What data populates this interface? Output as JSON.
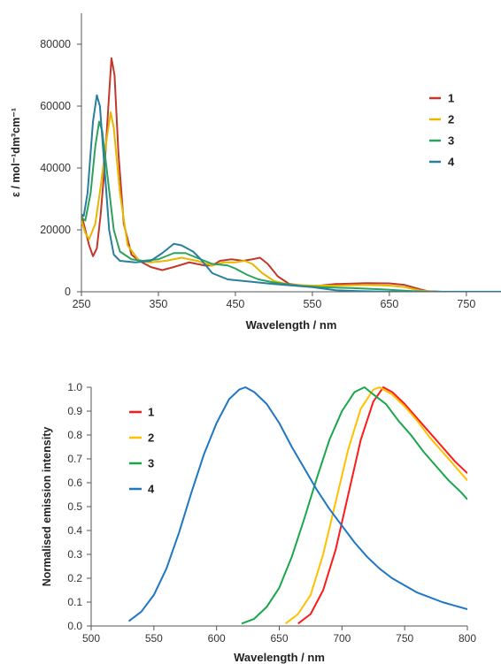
{
  "chart_data": [
    {
      "type": "line",
      "title": "",
      "xlabel": "Wavelength / nm",
      "ylabel": "ε / mol⁻¹dm³cm⁻¹",
      "xlim": [
        250,
        795
      ],
      "ylim": [
        0,
        90000
      ],
      "xticks": [
        "250",
        "350",
        "450",
        "550",
        "650",
        "750"
      ],
      "yticks": [
        "0",
        "20000",
        "40000",
        "60000",
        "80000"
      ],
      "grid": false,
      "legend_position": "right",
      "series": [
        {
          "name": "1",
          "color": "#c0392b",
          "points": [
            [
              250,
              25000
            ],
            [
              255,
              20000
            ],
            [
              260,
              15000
            ],
            [
              265,
              11500
            ],
            [
              270,
              14000
            ],
            [
              275,
              25000
            ],
            [
              280,
              40000
            ],
            [
              285,
              60000
            ],
            [
              289,
              75500
            ],
            [
              293,
              70000
            ],
            [
              298,
              45000
            ],
            [
              305,
              22000
            ],
            [
              315,
              12000
            ],
            [
              325,
              10000
            ],
            [
              340,
              8000
            ],
            [
              355,
              7000
            ],
            [
              370,
              8000
            ],
            [
              390,
              9500
            ],
            [
              410,
              8500
            ],
            [
              420,
              8500
            ],
            [
              430,
              10000
            ],
            [
              445,
              10500
            ],
            [
              460,
              10000
            ],
            [
              472,
              10500
            ],
            [
              482,
              11000
            ],
            [
              492,
              9000
            ],
            [
              505,
              5000
            ],
            [
              520,
              2500
            ],
            [
              540,
              2000
            ],
            [
              560,
              2000
            ],
            [
              580,
              2500
            ],
            [
              620,
              2800
            ],
            [
              650,
              2700
            ],
            [
              670,
              2200
            ],
            [
              690,
              800
            ],
            [
              700,
              200
            ],
            [
              720,
              0
            ],
            [
              795,
              0
            ]
          ]
        },
        {
          "name": "2",
          "color": "#e6b800",
          "points": [
            [
              250,
              23000
            ],
            [
              255,
              19000
            ],
            [
              260,
              17000
            ],
            [
              268,
              22000
            ],
            [
              275,
              34000
            ],
            [
              282,
              48000
            ],
            [
              288,
              58000
            ],
            [
              292,
              53000
            ],
            [
              300,
              32000
            ],
            [
              310,
              15000
            ],
            [
              325,
              10000
            ],
            [
              340,
              9500
            ],
            [
              360,
              10000
            ],
            [
              380,
              11000
            ],
            [
              400,
              10000
            ],
            [
              420,
              8500
            ],
            [
              435,
              9500
            ],
            [
              450,
              9500
            ],
            [
              462,
              10000
            ],
            [
              472,
              9000
            ],
            [
              485,
              6000
            ],
            [
              500,
              3500
            ],
            [
              520,
              2300
            ],
            [
              550,
              2000
            ],
            [
              580,
              2000
            ],
            [
              620,
              2200
            ],
            [
              650,
              2000
            ],
            [
              670,
              1500
            ],
            [
              690,
              400
            ],
            [
              710,
              0
            ],
            [
              795,
              0
            ]
          ]
        },
        {
          "name": "3",
          "color": "#2ca25f",
          "points": [
            [
              250,
              24000
            ],
            [
              255,
              23000
            ],
            [
              262,
              32000
            ],
            [
              268,
              47000
            ],
            [
              273,
              55000
            ],
            [
              277,
              52000
            ],
            [
              285,
              35000
            ],
            [
              292,
              20000
            ],
            [
              300,
              13000
            ],
            [
              315,
              10500
            ],
            [
              330,
              10000
            ],
            [
              350,
              10500
            ],
            [
              370,
              12500
            ],
            [
              385,
              12500
            ],
            [
              400,
              11000
            ],
            [
              420,
              9000
            ],
            [
              440,
              8500
            ],
            [
              450,
              7500
            ],
            [
              465,
              5500
            ],
            [
              480,
              4000
            ],
            [
              500,
              3000
            ],
            [
              530,
              2000
            ],
            [
              560,
              1500
            ],
            [
              600,
              1200
            ],
            [
              640,
              800
            ],
            [
              680,
              200
            ],
            [
              700,
              0
            ],
            [
              795,
              0
            ]
          ]
        },
        {
          "name": "4",
          "color": "#2a7f9e",
          "points": [
            [
              250,
              25000
            ],
            [
              253,
              24500
            ],
            [
              258,
              32000
            ],
            [
              265,
              55000
            ],
            [
              270,
              63500
            ],
            [
              274,
              60000
            ],
            [
              280,
              40000
            ],
            [
              286,
              20000
            ],
            [
              292,
              12000
            ],
            [
              300,
              10000
            ],
            [
              320,
              9500
            ],
            [
              340,
              10000
            ],
            [
              355,
              12500
            ],
            [
              370,
              15500
            ],
            [
              380,
              15000
            ],
            [
              395,
              13000
            ],
            [
              405,
              10500
            ],
            [
              420,
              6000
            ],
            [
              440,
              4000
            ],
            [
              460,
              3500
            ],
            [
              480,
              3000
            ],
            [
              500,
              2500
            ],
            [
              525,
              2000
            ],
            [
              550,
              1500
            ],
            [
              580,
              500
            ],
            [
              610,
              200
            ],
            [
              650,
              0
            ],
            [
              795,
              0
            ]
          ]
        }
      ]
    },
    {
      "type": "line",
      "title": "",
      "xlabel": "Wavelength / nm",
      "ylabel": "Normalised emission intensity",
      "xlim": [
        500,
        800
      ],
      "ylim": [
        0,
        1.0
      ],
      "xticks": [
        "500",
        "550",
        "600",
        "650",
        "700",
        "750",
        "800"
      ],
      "yticks": [
        "0.0",
        "0.1",
        "0.2",
        "0.3",
        "0.4",
        "0.5",
        "0.6",
        "0.7",
        "0.8",
        "0.9",
        "1.0"
      ],
      "grid": false,
      "legend_position": "top-left",
      "series": [
        {
          "name": "1",
          "color": "#ff1a1a",
          "points": [
            [
              665,
              0.01
            ],
            [
              675,
              0.05
            ],
            [
              685,
              0.15
            ],
            [
              695,
              0.32
            ],
            [
              705,
              0.55
            ],
            [
              715,
              0.78
            ],
            [
              725,
              0.94
            ],
            [
              733,
              1.0
            ],
            [
              740,
              0.98
            ],
            [
              750,
              0.93
            ],
            [
              760,
              0.87
            ],
            [
              770,
              0.81
            ],
            [
              780,
              0.75
            ],
            [
              790,
              0.69
            ],
            [
              800,
              0.64
            ]
          ]
        },
        {
          "name": "2",
          "color": "#ffc000",
          "points": [
            [
              655,
              0.01
            ],
            [
              665,
              0.05
            ],
            [
              675,
              0.13
            ],
            [
              685,
              0.3
            ],
            [
              695,
              0.52
            ],
            [
              705,
              0.74
            ],
            [
              715,
              0.91
            ],
            [
              725,
              0.99
            ],
            [
              730,
              1.0
            ],
            [
              740,
              0.97
            ],
            [
              750,
              0.92
            ],
            [
              760,
              0.86
            ],
            [
              770,
              0.79
            ],
            [
              780,
              0.73
            ],
            [
              790,
              0.67
            ],
            [
              800,
              0.61
            ]
          ]
        },
        {
          "name": "3",
          "color": "#1aa64a",
          "points": [
            [
              620,
              0.01
            ],
            [
              630,
              0.03
            ],
            [
              640,
              0.08
            ],
            [
              650,
              0.16
            ],
            [
              660,
              0.29
            ],
            [
              670,
              0.45
            ],
            [
              680,
              0.62
            ],
            [
              690,
              0.78
            ],
            [
              700,
              0.9
            ],
            [
              710,
              0.98
            ],
            [
              718,
              1.0
            ],
            [
              725,
              0.97
            ],
            [
              735,
              0.93
            ],
            [
              745,
              0.86
            ],
            [
              755,
              0.8
            ],
            [
              765,
              0.73
            ],
            [
              775,
              0.67
            ],
            [
              785,
              0.61
            ],
            [
              795,
              0.56
            ],
            [
              800,
              0.53
            ]
          ]
        },
        {
          "name": "4",
          "color": "#1f77c4",
          "points": [
            [
              530,
              0.02
            ],
            [
              540,
              0.06
            ],
            [
              550,
              0.13
            ],
            [
              560,
              0.24
            ],
            [
              570,
              0.39
            ],
            [
              580,
              0.56
            ],
            [
              590,
              0.72
            ],
            [
              600,
              0.85
            ],
            [
              610,
              0.95
            ],
            [
              618,
              0.99
            ],
            [
              623,
              1.0
            ],
            [
              630,
              0.98
            ],
            [
              640,
              0.93
            ],
            [
              650,
              0.85
            ],
            [
              660,
              0.75
            ],
            [
              670,
              0.66
            ],
            [
              680,
              0.57
            ],
            [
              690,
              0.49
            ],
            [
              700,
              0.42
            ],
            [
              710,
              0.35
            ],
            [
              720,
              0.29
            ],
            [
              730,
              0.24
            ],
            [
              740,
              0.2
            ],
            [
              750,
              0.17
            ],
            [
              760,
              0.14
            ],
            [
              770,
              0.12
            ],
            [
              780,
              0.1
            ],
            [
              790,
              0.085
            ],
            [
              800,
              0.07
            ]
          ]
        }
      ]
    }
  ]
}
